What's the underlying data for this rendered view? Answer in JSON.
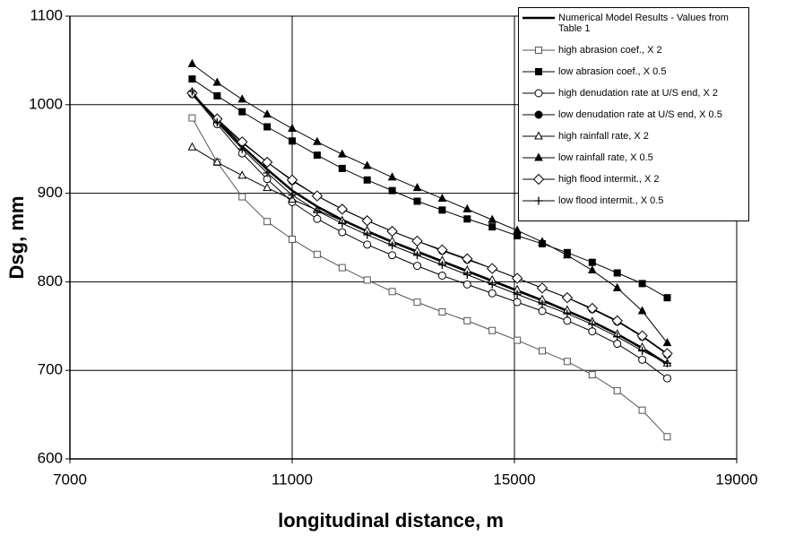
{
  "chart_data": {
    "type": "line",
    "xlabel": "longitudinal distance, m",
    "ylabel": "Dsg, mm",
    "xlim": [
      7000,
      19000
    ],
    "xticks": [
      7000,
      11000,
      15000,
      19000
    ],
    "ylim": [
      600,
      1100
    ],
    "yticks": [
      600,
      700,
      800,
      900,
      1000,
      1100
    ],
    "grid": true,
    "legend": "upper right",
    "x": [
      9200,
      9650,
      10100,
      10550,
      11000,
      11450,
      11900,
      12350,
      12800,
      13250,
      13700,
      14150,
      14600,
      15050,
      15500,
      15950,
      16400,
      16850,
      17300,
      17750
    ],
    "series": [
      {
        "name": "Numerical Model Results - Values from Table 1",
        "color": "#000000",
        "width": 2.5,
        "values": [
          1012,
          982,
          953,
          927,
          903,
          885,
          870,
          857,
          845,
          834,
          823,
          812,
          801,
          790,
          779,
          767,
          755,
          741,
          725,
          707
        ]
      },
      {
        "name": "high abrasion coef., X 2",
        "color": "#555555",
        "marker": "square-open",
        "values": [
          985,
          935,
          896,
          868,
          848,
          831,
          816,
          802,
          789,
          777,
          766,
          756,
          745,
          734,
          722,
          710,
          695,
          677,
          655,
          625
        ]
      },
      {
        "name": "low abrasion coef., X 0.5",
        "color": "#000000",
        "marker": "square-filled",
        "values": [
          1029,
          1010,
          992,
          975,
          959,
          943,
          928,
          915,
          903,
          891,
          881,
          871,
          862,
          852,
          843,
          833,
          822,
          810,
          798,
          782
        ]
      },
      {
        "name": "high denudation rate at U/S end, X 2",
        "color": "#000000",
        "marker": "circle-open",
        "values": [
          1012,
          978,
          945,
          916,
          890,
          871,
          856,
          842,
          830,
          818,
          807,
          797,
          787,
          777,
          767,
          756,
          744,
          730,
          712,
          691
        ]
      },
      {
        "name": "low denudation rate at U/S end, X 0.5",
        "color": "#000000",
        "marker": "circle-filled",
        "values": [
          1013,
          983,
          957,
          935,
          914,
          897,
          882,
          869,
          857,
          846,
          835,
          825,
          815,
          804,
          793,
          782,
          769,
          755,
          738,
          718
        ]
      },
      {
        "name": "high rainfall rate, X 2",
        "color": "#000000",
        "marker": "triangle-open",
        "values": [
          952,
          935,
          920,
          906,
          893,
          881,
          869,
          858,
          846,
          835,
          824,
          813,
          802,
          791,
          780,
          768,
          755,
          741,
          726,
          708
        ]
      },
      {
        "name": "low rainfall rate, X 0.5",
        "color": "#000000",
        "marker": "triangle-filled",
        "values": [
          1046,
          1025,
          1006,
          989,
          973,
          958,
          944,
          931,
          918,
          906,
          894,
          882,
          870,
          858,
          845,
          830,
          813,
          793,
          767,
          731
        ]
      },
      {
        "name": "high flood intermit., X 2",
        "color": "#000000",
        "marker": "diamond-open",
        "values": [
          1013,
          984,
          958,
          935,
          915,
          897,
          882,
          869,
          857,
          846,
          836,
          826,
          815,
          804,
          793,
          782,
          770,
          756,
          739,
          719
        ]
      },
      {
        "name": "low flood intermit., X 0.5",
        "color": "#000000",
        "marker": "plus",
        "values": [
          1015,
          980,
          950,
          923,
          898,
          880,
          866,
          853,
          841,
          830,
          819,
          808,
          797,
          786,
          775,
          764,
          752,
          738,
          722,
          708
        ]
      }
    ]
  }
}
